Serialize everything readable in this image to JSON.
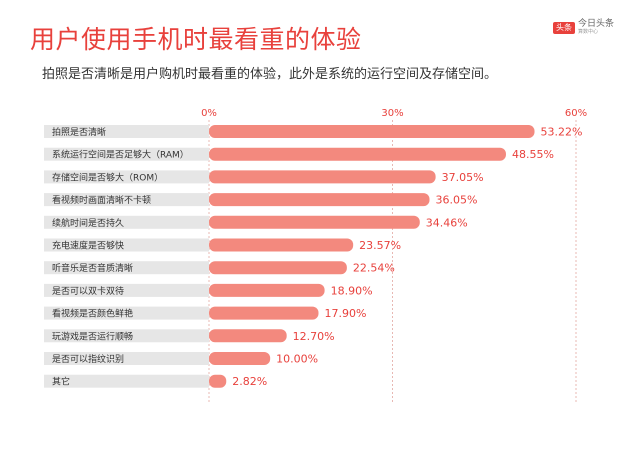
{
  "header": {
    "title": "用户使用手机时最看重的体验",
    "subtitle": "拍照是否清晰是用户购机时最看重的体验，此外是系统的运行空间及存储空间。"
  },
  "logo": {
    "badge": "头条",
    "main": "今日头条",
    "sub": "算数中心"
  },
  "colors": {
    "bar": "#f3897e",
    "label_bg": "#e6e6e6",
    "title": "#e8413c",
    "value_text": "#e8413c",
    "tick_text": "#e8413c",
    "grid": "#e8b8b3"
  },
  "chart_data": {
    "type": "bar",
    "orientation": "horizontal",
    "categories": [
      "拍照是否清晰",
      "系统运行空间是否足够大（RAM）",
      "存储空间是否够大（ROM）",
      "看视频时画面清晰不卡顿",
      "续航时间是否持久",
      "充电速度是否够快",
      "听音乐是否音质清晰",
      "是否可以双卡双待",
      "看视频是否颜色鲜艳",
      "玩游戏是否运行顺畅",
      "是否可以指纹识别",
      "其它"
    ],
    "values": [
      53.22,
      48.55,
      37.05,
      36.05,
      34.46,
      23.57,
      22.54,
      18.9,
      17.9,
      12.7,
      10.0,
      2.82
    ],
    "value_labels": [
      "53.22%",
      "48.55%",
      "37.05%",
      "36.05%",
      "34.46%",
      "23.57%",
      "22.54%",
      "18.90%",
      "17.90%",
      "12.70%",
      "10.00%",
      "2.82%"
    ],
    "xlim": [
      0,
      60
    ],
    "xticks": [
      {
        "value": 0,
        "label": "0%"
      },
      {
        "value": 30,
        "label": "30%"
      },
      {
        "value": 60,
        "label": "60%"
      }
    ],
    "grid": true
  }
}
